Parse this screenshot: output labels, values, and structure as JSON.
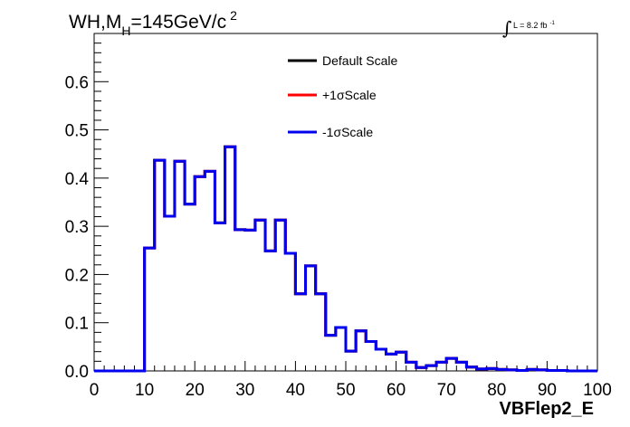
{
  "chart_data": {
    "type": "line",
    "title_main": "WH,M",
    "title_sub": "H",
    "title_rest": "=145GeV/c",
    "title_sup": "2",
    "lumi_text": "L = 8.2 fb",
    "lumi_sup": "-1",
    "xlabel": "VBFlep2_E",
    "xlim": [
      0,
      100
    ],
    "ylim": [
      0,
      0.7
    ],
    "xticks": [
      0,
      10,
      20,
      30,
      40,
      50,
      60,
      70,
      80,
      90,
      100
    ],
    "yticks": [
      0.0,
      0.1,
      0.2,
      0.3,
      0.4,
      0.5,
      0.6
    ],
    "ytick_labels": [
      "0.0",
      "0.1",
      "0.2",
      "0.3",
      "0.4",
      "0.5",
      "0.6"
    ],
    "xtick_labels": [
      "0",
      "10",
      "20",
      "30",
      "40",
      "50",
      "60",
      "70",
      "80",
      "90",
      "100"
    ],
    "bin_width": 2,
    "x_start": 0,
    "legend_position": "top-center",
    "series": [
      {
        "name": "Default Scale",
        "color": "#000000",
        "values": [
          0,
          0,
          0,
          0,
          0,
          0.255,
          0.437,
          0.321,
          0.435,
          0.346,
          0.403,
          0.414,
          0.307,
          0.465,
          0.293,
          0.292,
          0.313,
          0.249,
          0.313,
          0.244,
          0.16,
          0.218,
          0.16,
          0.074,
          0.09,
          0.041,
          0.083,
          0.061,
          0.045,
          0.035,
          0.039,
          0.018,
          0.007,
          0.011,
          0.018,
          0.026,
          0.018,
          0.008,
          0.004,
          0.005,
          0.003,
          0.002,
          0.001,
          0.003,
          0.002,
          0.001,
          0.001,
          0,
          0,
          0
        ]
      },
      {
        "name": "+1σScale",
        "color": "#ff0000",
        "values": [
          0,
          0,
          0,
          0,
          0,
          0.255,
          0.437,
          0.321,
          0.435,
          0.346,
          0.403,
          0.414,
          0.307,
          0.465,
          0.293,
          0.292,
          0.313,
          0.249,
          0.313,
          0.244,
          0.16,
          0.218,
          0.16,
          0.074,
          0.09,
          0.041,
          0.083,
          0.061,
          0.045,
          0.035,
          0.039,
          0.018,
          0.007,
          0.011,
          0.018,
          0.026,
          0.018,
          0.008,
          0.004,
          0.005,
          0.003,
          0.002,
          0.001,
          0.003,
          0.002,
          0.001,
          0.001,
          0,
          0,
          0
        ]
      },
      {
        "name": "-1σScale",
        "color": "#0000ee",
        "values": [
          0,
          0,
          0,
          0,
          0,
          0.255,
          0.437,
          0.321,
          0.435,
          0.346,
          0.403,
          0.414,
          0.307,
          0.465,
          0.293,
          0.292,
          0.313,
          0.249,
          0.313,
          0.244,
          0.16,
          0.218,
          0.16,
          0.074,
          0.09,
          0.041,
          0.083,
          0.061,
          0.045,
          0.035,
          0.039,
          0.018,
          0.007,
          0.011,
          0.018,
          0.026,
          0.018,
          0.008,
          0.004,
          0.005,
          0.003,
          0.002,
          0.001,
          0.003,
          0.002,
          0.001,
          0.001,
          0,
          0,
          0
        ]
      }
    ]
  }
}
